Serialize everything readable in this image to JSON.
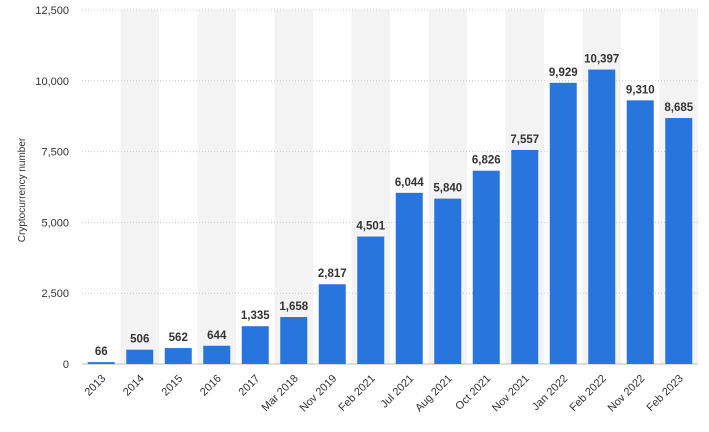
{
  "chart_data": {
    "type": "bar",
    "title": "",
    "xlabel": "",
    "ylabel": "Cryptocurrency number",
    "ylim": [
      0,
      12500
    ],
    "yticks": [
      0,
      2500,
      5000,
      7500,
      10000,
      12500
    ],
    "ytick_labels": [
      "0",
      "2,500",
      "5,000",
      "7,500",
      "10,000",
      "12,500"
    ],
    "grid": true,
    "categories": [
      "2013",
      "2014",
      "2015",
      "2016",
      "2017",
      "Mar 2018",
      "Nov 2019",
      "Feb 2021",
      "Jul 2021",
      "Aug 2021",
      "Oct 2021",
      "Nov 2021",
      "Jan 2022",
      "Feb 2022",
      "Nov 2022",
      "Feb 2023"
    ],
    "values": [
      66,
      506,
      562,
      644,
      1335,
      1658,
      2817,
      4501,
      6044,
      5840,
      6826,
      7557,
      9929,
      10397,
      9310,
      8685
    ],
    "value_labels": [
      "66",
      "506",
      "562",
      "644",
      "1,335",
      "1,658",
      "2,817",
      "4,501",
      "6,044",
      "5,840",
      "6,826",
      "7,557",
      "9,929",
      "10,397",
      "9,310",
      "8,685"
    ],
    "colors": {
      "bar": "#2876dd",
      "band": "#f3f3f3",
      "grid": "#c9c9c9",
      "text": "#333333"
    }
  }
}
